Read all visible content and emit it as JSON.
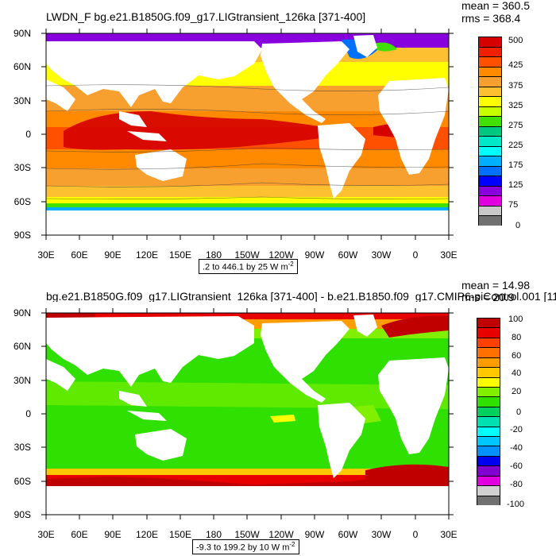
{
  "panel1": {
    "title": "LWDN_F bg.e21.B1850G.f09_g17.LIGtransient_126ka [371-400]",
    "mean": "mean = 360.5",
    "rms": "rms = 368.4",
    "range": ".2 to 446.1 by 25  W m",
    "range_sup": "-2",
    "colorbar": {
      "colors": [
        "#d50000",
        "#f02000",
        "#ff5000",
        "#ff8a00",
        "#f7a030",
        "#fcc030",
        "#ffff00",
        "#c8ff00",
        "#40e000",
        "#00c880",
        "#00e8c8",
        "#00ffff",
        "#00b0ff",
        "#0070ff",
        "#0000ff",
        "#8800dd",
        "#e000e0",
        "#c8c8c8",
        "#707070"
      ],
      "labels": [
        "500",
        "425",
        "375",
        "325",
        "275",
        "225",
        "175",
        "125",
        "75",
        "0"
      ]
    }
  },
  "panel2": {
    "title": "bg.e21.B1850G.f09_g17.LIGtransient_126ka [371-400] - b.e21.B1850.f09_g17.CMIP6-piControl.001 [11",
    "mean": "mean = 14.98",
    "rms": "rms = 20.9",
    "range": "-9.3 to 199.2 by 10  W m",
    "range_sup": "-2",
    "colorbar": {
      "colors": [
        "#c00000",
        "#e80000",
        "#ff4000",
        "#ff7000",
        "#ff9c00",
        "#ffc800",
        "#ffff00",
        "#80f000",
        "#30e000",
        "#00d060",
        "#00e0b0",
        "#00ffff",
        "#00c8ff",
        "#0090ff",
        "#0000f0",
        "#8000d0",
        "#e000e0",
        "#d0d0d0",
        "#707070"
      ],
      "labels": [
        "100",
        "80",
        "60",
        "40",
        "20",
        "0",
        "-20",
        "-40",
        "-60",
        "-80",
        "-100"
      ]
    }
  },
  "axes": {
    "lat_labels": [
      "90N",
      "60N",
      "30N",
      "0",
      "30S",
      "60S",
      "90S"
    ],
    "lon_labels": [
      "30E",
      "60E",
      "90E",
      "120E",
      "150E",
      "180",
      "150W",
      "120W",
      "90W",
      "60W",
      "30W",
      "0",
      "30E"
    ]
  },
  "colors": {
    "land": "#ffffff",
    "frame": "#000000"
  }
}
